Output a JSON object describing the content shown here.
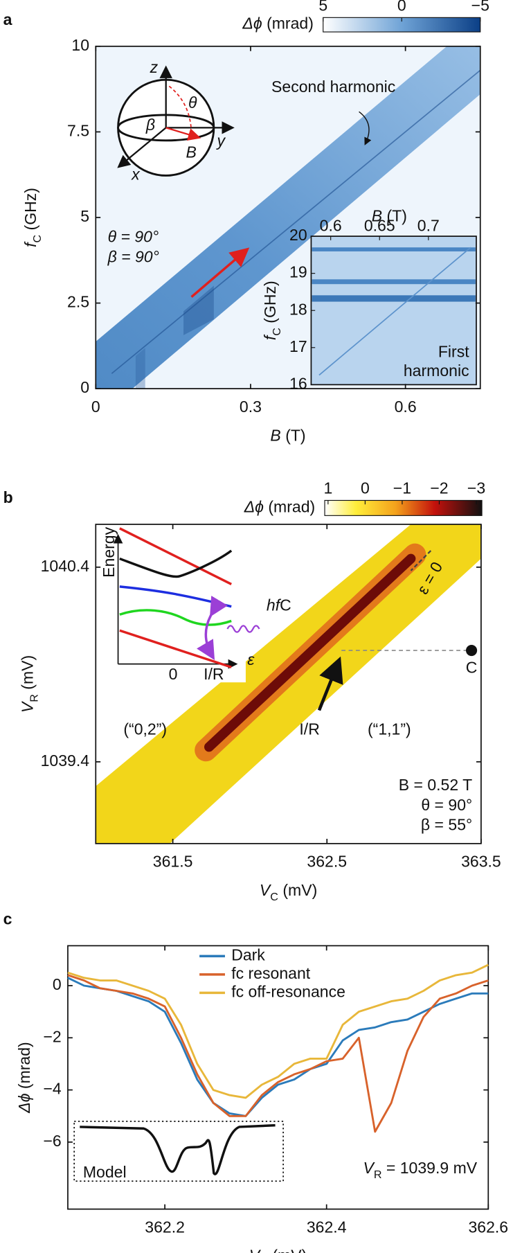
{
  "chart_data": [
    {
      "type": "heatmap",
      "panel_label": "a",
      "xlabel": [
        "B",
        " (T)"
      ],
      "ylabel": [
        "f",
        "C",
        " (GHz)"
      ],
      "xlim": [
        0,
        0.745
      ],
      "ylim": [
        0,
        10
      ],
      "xticks": [
        0,
        0.3,
        0.6
      ],
      "yticks": [
        0,
        2.5,
        5,
        7.5,
        10
      ],
      "colorbar": {
        "label": [
          "Δϕ",
          " (mrad)"
        ],
        "lim": [
          5,
          -5
        ],
        "ticks": [
          5,
          0,
          {
            "value": -5,
            "label": "−5"
          }
        ]
      },
      "annotations": [
        "Second harmonic",
        "θ = 90°",
        "β = 90°"
      ],
      "sphere_labels": [
        "z",
        "θ",
        "β",
        "B",
        "y",
        "x"
      ],
      "inset": {
        "xlabel": [
          "B",
          " (T)"
        ],
        "ylabel": [
          "f",
          "C",
          " (GHz)"
        ],
        "xlim": [
          0.58,
          0.749
        ],
        "ylim": [
          16,
          20
        ],
        "xticks": [
          0.6,
          0.65,
          0.7
        ],
        "yticks": [
          16,
          17,
          18,
          19,
          20
        ],
        "text": [
          "First",
          "harmonic"
        ]
      }
    },
    {
      "type": "heatmap",
      "panel_label": "b",
      "xlabel": [
        "V",
        "C",
        " (mV)"
      ],
      "ylabel": [
        "V",
        "R",
        " (mV)"
      ],
      "xlim": [
        361.0,
        363.5
      ],
      "ylim": [
        1038.98,
        1040.62
      ],
      "xticks": [
        361.5,
        362.5,
        363.5
      ],
      "yticks": [
        1039.4,
        1040.4
      ],
      "colorbar": {
        "label": [
          "Δϕ",
          " (mrad)"
        ],
        "lim": [
          1.09,
          -3.15
        ],
        "ticks": [
          1,
          0,
          {
            "value": -1,
            "label": "−1"
          },
          {
            "value": -2,
            "label": "−2"
          },
          {
            "value": -3,
            "label": "−3"
          }
        ]
      },
      "annotations": [
        "(“0,2”)",
        "(“1,1”)",
        "I/R",
        "C",
        "ε = 0"
      ],
      "parameters": [
        "B = 0.52 T",
        "θ = 90°",
        "β = 55°"
      ],
      "inset": {
        "ylabel": "Energy",
        "xlabel": "ε",
        "xticklabels": [
          "0",
          "I/R"
        ],
        "photon": [
          "hf",
          "C"
        ]
      }
    },
    {
      "type": "line",
      "panel_label": "c",
      "xlabel": [
        "V",
        "C",
        " (mV)"
      ],
      "ylabel": [
        "Δϕ",
        " (mrad)"
      ],
      "xlim": [
        362.08,
        362.6
      ],
      "ylim": [
        -8.57,
        1.53
      ],
      "xticks": [
        362.2,
        362.4,
        362.6
      ],
      "yticks": [
        {
          "value": -6,
          "label": "−6"
        },
        {
          "value": -4,
          "label": "−4"
        },
        {
          "value": -2,
          "label": "−2"
        },
        0
      ],
      "x": [
        362.08,
        362.1,
        362.12,
        362.14,
        362.16,
        362.18,
        362.2,
        362.22,
        362.24,
        362.26,
        362.28,
        362.3,
        362.32,
        362.34,
        362.36,
        362.38,
        362.4,
        362.42,
        362.44,
        362.46,
        362.48,
        362.5,
        362.52,
        362.54,
        362.56,
        362.58,
        362.6
      ],
      "series": [
        {
          "name": "Dark",
          "color": "#2b7bba",
          "values": [
            0.3,
            0.0,
            -0.1,
            -0.2,
            -0.4,
            -0.6,
            -1.0,
            -2.2,
            -3.6,
            -4.5,
            -4.9,
            -5.0,
            -4.3,
            -3.8,
            -3.6,
            -3.2,
            -3.0,
            -2.1,
            -1.7,
            -1.6,
            -1.4,
            -1.3,
            -1.0,
            -0.7,
            -0.5,
            -0.3,
            -0.3
          ]
        },
        {
          "name": "fc resonant",
          "color": "#d8622b",
          "values": [
            0.4,
            0.2,
            -0.1,
            -0.2,
            -0.3,
            -0.5,
            -0.8,
            -2.0,
            -3.4,
            -4.5,
            -5.0,
            -5.0,
            -4.2,
            -3.7,
            -3.4,
            -3.2,
            -2.9,
            -2.8,
            -2.0,
            -5.6,
            -4.5,
            -2.5,
            -1.2,
            -0.5,
            -0.3,
            0.0,
            0.2
          ]
        },
        {
          "name": "fc off-resonance",
          "color": "#e8b73a",
          "values": [
            0.5,
            0.3,
            0.2,
            0.2,
            0.0,
            -0.2,
            -0.5,
            -1.5,
            -3.0,
            -4.0,
            -4.2,
            -4.3,
            -3.8,
            -3.5,
            -3.0,
            -2.8,
            -2.8,
            -1.5,
            -1.0,
            -0.8,
            -0.6,
            -0.5,
            -0.2,
            0.2,
            0.4,
            0.5,
            0.8
          ]
        }
      ],
      "annotation": [
        "V",
        "R",
        " = 1039.9 mV"
      ],
      "inset_label": "Model"
    }
  ]
}
